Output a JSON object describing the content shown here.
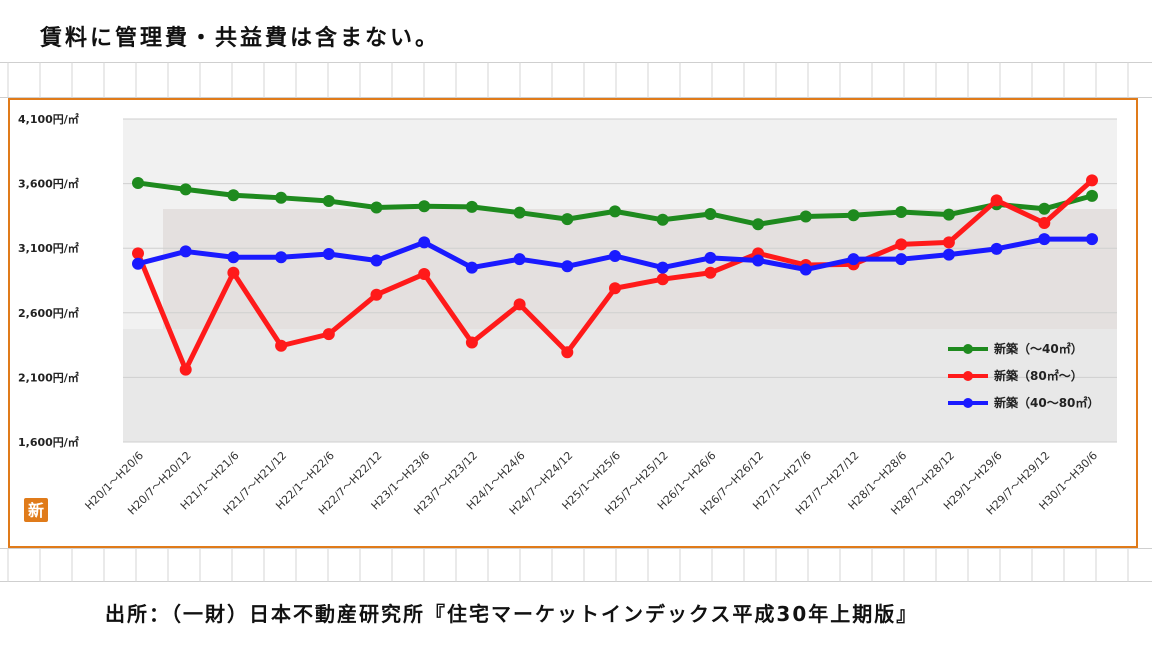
{
  "header": {
    "note": "賃料に管理費・共益費は含まない。"
  },
  "footer": {
    "source": "出所：（一財）日本不動産研究所『住宅マーケットインデックス平成30年上期版』"
  },
  "badge": {
    "text": "新"
  },
  "colors": {
    "frame": "#e07b1a",
    "green": "#1e8a1e",
    "red": "#ff1a1a",
    "blue": "#1a1aff",
    "grid": "#c8c8c8"
  },
  "chart_data": {
    "type": "line",
    "y_tick_labels": [
      "4,100円/㎡",
      "3,600円/㎡",
      "3,100円/㎡",
      "2,600円/㎡",
      "2,100円/㎡",
      "1,600円/㎡"
    ],
    "ylim": [
      1600,
      4100
    ],
    "categories": [
      "H20/1～H20/6",
      "H20/7～H20/12",
      "H21/1～H21/6",
      "H21/7～H21/12",
      "H22/1～H22/6",
      "H22/7～H22/12",
      "H23/1～H23/6",
      "H23/7～H23/12",
      "H24/1～H24/6",
      "H24/7～H24/12",
      "H25/1～H25/6",
      "H25/7～H25/12",
      "H26/1～H26/6",
      "H26/7～H26/12",
      "H27/1～H27/6",
      "H27/7～H27/12",
      "H28/1～H28/6",
      "H28/7～H28/12",
      "H29/1～H29/6",
      "H29/7～H29/12",
      "H30/1～H30/6"
    ],
    "series": [
      {
        "name": "新築（～40㎡）",
        "color": "#1e8a1e",
        "values": [
          3605,
          3555,
          3510,
          3490,
          3465,
          3415,
          3425,
          3420,
          3375,
          3325,
          3385,
          3320,
          3365,
          3285,
          3345,
          3355,
          3380,
          3360,
          3440,
          3405,
          3505
        ]
      },
      {
        "name": "新築（80㎡～）",
        "color": "#ff1a1a",
        "values": [
          3060,
          2160,
          2910,
          2345,
          2435,
          2740,
          2900,
          2370,
          2665,
          2295,
          2790,
          2860,
          2910,
          3060,
          2970,
          2975,
          3130,
          3145,
          3470,
          3295,
          3625
        ]
      },
      {
        "name": "新築（40～80㎡）",
        "color": "#1a1aff",
        "values": [
          2980,
          3075,
          3030,
          3030,
          3055,
          3005,
          3145,
          2950,
          3015,
          2960,
          3040,
          2950,
          3025,
          3005,
          2935,
          3015,
          3015,
          3050,
          3095,
          3170,
          3170
        ]
      }
    ],
    "legend_position": "right",
    "grid": true
  }
}
